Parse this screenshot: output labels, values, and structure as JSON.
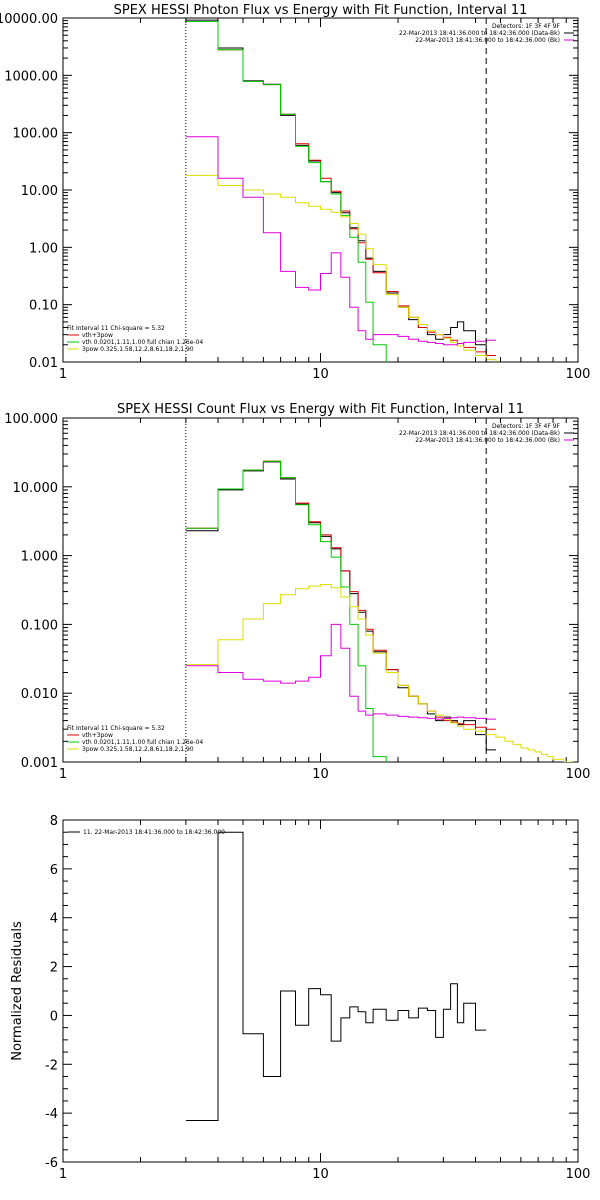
{
  "chart_data": [
    {
      "type": "line",
      "title": "SPEX HESSI Photon Flux vs Energy with Fit Function, Interval 11",
      "xscale": "log",
      "yscale": "log",
      "xlim": [
        1,
        100
      ],
      "ylim": [
        0.01,
        10000
      ],
      "xticks": [
        {
          "v": 1,
          "label": "1"
        },
        {
          "v": 10,
          "label": "10"
        },
        {
          "v": 100,
          "label": "100"
        }
      ],
      "yticks": [
        {
          "v": 10000,
          "label": "10000.00"
        },
        {
          "v": 1000,
          "label": "1000.00"
        },
        {
          "v": 100,
          "label": "100.00"
        },
        {
          "v": 10,
          "label": "10.00"
        },
        {
          "v": 1,
          "label": "1.00"
        },
        {
          "v": 0.1,
          "label": "0.10"
        },
        {
          "v": 0.01,
          "label": "0.01"
        }
      ],
      "vlines": [
        {
          "x": 3,
          "style": "dotted"
        },
        {
          "x": 44,
          "style": "dashed"
        }
      ],
      "legend_left": [
        {
          "text": "Fit Interval 11   Chi-square = 5.32",
          "color": "#000000"
        },
        {
          "text": "vth+3pow",
          "color": "#dd0000"
        },
        {
          "text": "vth 0.0201,1.11,1.00  full chian 1.26e-04",
          "color": "#00cc00"
        },
        {
          "text": "3pow 0.325,1.58,12.2,8.61,18.2,1.90",
          "color": "#dddd00"
        }
      ],
      "legend_right": [
        {
          "text": "Detectors: 1F 3F 4F 9F",
          "color": null
        },
        {
          "text": "22-Mar-2013 18:41:36.000 to 18:42:36.000 (Data-Bk)",
          "color": "#000000"
        },
        {
          "text": "22-Mar-2013 18:41:36.000 to 18:42:36.000 (Bk)",
          "color": "#dd00dd"
        }
      ],
      "edges": [
        3,
        4,
        5,
        6,
        7,
        8,
        9,
        10,
        11,
        12,
        13,
        14,
        15,
        16,
        18,
        20,
        22,
        24,
        26,
        28,
        30,
        32,
        34,
        36,
        40,
        44,
        48,
        52
      ],
      "series": [
        {
          "color": "#000000",
          "values": [
            9200,
            3000,
            800,
            700,
            200,
            60,
            32,
            14,
            9,
            4,
            2.2,
            1.3,
            0.65,
            0.38,
            0.16,
            0.09,
            0.055,
            0.04,
            0.03,
            0.025,
            0.03,
            0.04,
            0.05,
            0.035,
            0.02,
            0.01,
            null
          ]
        },
        {
          "color": "#dd0000",
          "values": [
            8700,
            2800,
            780,
            690,
            210,
            64,
            33,
            16,
            9.5,
            4.3,
            2.1,
            1.2,
            0.62,
            0.36,
            0.17,
            0.095,
            0.06,
            0.04,
            0.033,
            0.03,
            0.027,
            0.024,
            0.021,
            0.018,
            0.015,
            0.013,
            null
          ]
        },
        {
          "color": "#00cc00",
          "values": [
            8700,
            2800,
            780,
            690,
            210,
            58,
            30,
            14,
            8.5,
            3.6,
            1.5,
            0.55,
            0.11,
            0.02,
            0.006,
            null,
            null,
            null,
            null,
            null,
            null,
            null,
            null,
            null,
            null,
            null,
            null
          ]
        },
        {
          "color": "#dddd00",
          "values": [
            18,
            12,
            10,
            8.5,
            7.5,
            6,
            5.2,
            4.6,
            4.1,
            3.4,
            2.6,
            1.7,
            0.95,
            0.5,
            0.15,
            0.09,
            0.06,
            0.045,
            0.035,
            0.03,
            0.026,
            0.022,
            0.019,
            0.016,
            0.013,
            0.011,
            0.009
          ]
        },
        {
          "color": "#dd00dd",
          "values": [
            85,
            16,
            7.5,
            1.8,
            0.38,
            0.2,
            0.18,
            0.35,
            0.8,
            0.3,
            0.09,
            0.035,
            0.025,
            0.03,
            0.03,
            0.028,
            0.025,
            0.023,
            0.022,
            0.021,
            0.02,
            0.02,
            0.021,
            0.022,
            0.023,
            0.024,
            null
          ]
        }
      ]
    },
    {
      "type": "line",
      "title": "SPEX HESSI Count Flux vs Energy with Fit Function, Interval 11",
      "xscale": "log",
      "yscale": "log",
      "xlim": [
        1,
        100
      ],
      "ylim": [
        0.001,
        100
      ],
      "xticks": [
        {
          "v": 1,
          "label": "1"
        },
        {
          "v": 10,
          "label": "10"
        },
        {
          "v": 100,
          "label": "100"
        }
      ],
      "yticks": [
        {
          "v": 100,
          "label": "100.000"
        },
        {
          "v": 10,
          "label": "10.000"
        },
        {
          "v": 1,
          "label": "1.000"
        },
        {
          "v": 0.1,
          "label": "0.100"
        },
        {
          "v": 0.01,
          "label": "0.010"
        },
        {
          "v": 0.001,
          "label": "0.001"
        }
      ],
      "vlines": [
        {
          "x": 3,
          "style": "dotted"
        },
        {
          "x": 44,
          "style": "dashed"
        }
      ],
      "legend_left": [
        {
          "text": "Fit Interval 11   Chi-square = 5.32",
          "color": "#000000"
        },
        {
          "text": "vth+3pow",
          "color": "#dd0000"
        },
        {
          "text": "vth 0.0201,1.11,1.00  full chian 1.26e-04",
          "color": "#00cc00"
        },
        {
          "text": "3pow 0.325,1.58,12.2,8.61,18.2,1.90",
          "color": "#dddd00"
        }
      ],
      "legend_right": [
        {
          "text": "Detectors: 1F 3F 4F 9F",
          "color": null
        },
        {
          "text": "22-Mar-2013 18:41:36.000 to 18:42:36.000 (Data-Bk)",
          "color": "#000000"
        },
        {
          "text": "22-Mar-2013 18:41:36.000 to 18:42:36.000 (Bk)",
          "color": "#dd00dd"
        }
      ],
      "edges": [
        3,
        4,
        5,
        6,
        7,
        8,
        9,
        10,
        11,
        12,
        13,
        14,
        15,
        16,
        18,
        20,
        22,
        24,
        26,
        28,
        30,
        32,
        34,
        36,
        40,
        44,
        48,
        52,
        56,
        60,
        64,
        68,
        72,
        76,
        80,
        84,
        88,
        92,
        96
      ],
      "series": [
        {
          "color": "#000000",
          "values": [
            2.3,
            9,
            17,
            23,
            13,
            5.6,
            3,
            1.9,
            1.25,
            0.6,
            0.28,
            0.15,
            0.08,
            0.04,
            0.022,
            0.012,
            0.009,
            0.007,
            0.005,
            0.004,
            0.0045,
            0.004,
            0.0035,
            0.004,
            0.0025,
            0.0015,
            null,
            null,
            null,
            null,
            null,
            null,
            null,
            null,
            null,
            null,
            null,
            null
          ]
        },
        {
          "color": "#dd0000",
          "values": [
            2.5,
            9.3,
            17.5,
            23.5,
            13.5,
            5.8,
            3.1,
            2,
            1.3,
            0.6,
            0.3,
            0.16,
            0.085,
            0.042,
            0.022,
            0.013,
            0.009,
            0.007,
            0.0055,
            0.0045,
            0.004,
            0.0038,
            0.0036,
            0.0035,
            0.0032,
            0.003,
            null,
            null,
            null,
            null,
            null,
            null,
            null,
            null,
            null,
            null,
            null,
            null
          ]
        },
        {
          "color": "#00cc00",
          "values": [
            2.5,
            9.3,
            17.5,
            23.5,
            13.5,
            5.5,
            2.8,
            1.6,
            0.95,
            0.35,
            0.1,
            0.025,
            0.006,
            0.0012,
            0.0003,
            null,
            null,
            null,
            null,
            null,
            null,
            null,
            null,
            null,
            null,
            null,
            null,
            null,
            null,
            null,
            null,
            null,
            null,
            null,
            null,
            null,
            null,
            null
          ]
        },
        {
          "color": "#dddd00",
          "values": [
            0.026,
            0.06,
            0.12,
            0.2,
            0.27,
            0.33,
            0.36,
            0.38,
            0.34,
            0.25,
            0.18,
            0.12,
            0.07,
            0.038,
            0.02,
            0.013,
            0.009,
            0.007,
            0.0055,
            0.0048,
            0.0042,
            0.0037,
            0.0033,
            0.003,
            0.0028,
            0.0025,
            0.0023,
            0.002,
            0.0018,
            0.0016,
            0.0015,
            0.0014,
            0.0013,
            0.0012,
            0.0011,
            0.0011,
            0.001,
            0.001
          ]
        },
        {
          "color": "#dd00dd",
          "values": [
            0.025,
            0.02,
            0.016,
            0.015,
            0.014,
            0.015,
            0.017,
            0.035,
            0.1,
            0.045,
            0.009,
            0.0055,
            0.0048,
            0.005,
            0.0048,
            0.0046,
            0.0045,
            0.0044,
            0.0043,
            0.0042,
            0.0043,
            0.0044,
            0.0045,
            0.0044,
            0.0043,
            0.0042,
            null,
            null,
            null,
            null,
            null,
            null,
            null,
            null,
            null,
            null,
            null,
            null
          ]
        }
      ]
    },
    {
      "type": "line",
      "title": "",
      "ylabel": "Normalized Residuals",
      "xscale": "log",
      "yscale": "linear",
      "xlim": [
        1,
        100
      ],
      "ylim": [
        -6,
        8
      ],
      "xticks": [
        {
          "v": 1,
          "label": "1"
        },
        {
          "v": 10,
          "label": "10"
        },
        {
          "v": 100,
          "label": "100"
        }
      ],
      "yticks": [
        {
          "v": 8,
          "label": "8"
        },
        {
          "v": 6,
          "label": "6"
        },
        {
          "v": 4,
          "label": "4"
        },
        {
          "v": 2,
          "label": "2"
        },
        {
          "v": 0,
          "label": "0"
        },
        {
          "v": -2,
          "label": "-2"
        },
        {
          "v": -4,
          "label": "-4"
        },
        {
          "v": -6,
          "label": "-6"
        }
      ],
      "vlines": [],
      "legend_left": [
        {
          "text": "11. 22-Mar-2013 18:41:36.000 to 18:42:36.000",
          "color": "#000000"
        }
      ],
      "legend_right": [],
      "edges": [
        3,
        4,
        5,
        6,
        7,
        8,
        9,
        10,
        11,
        12,
        13,
        14,
        15,
        16,
        18,
        20,
        22,
        24,
        26,
        28,
        30,
        32,
        34,
        36,
        40,
        44
      ],
      "series": [
        {
          "color": "#000000",
          "values": [
            -4.3,
            7.5,
            -0.75,
            -2.5,
            1.0,
            -0.4,
            1.1,
            0.85,
            -1.05,
            -0.1,
            0.35,
            0.15,
            -0.3,
            0.25,
            -0.2,
            0.2,
            -0.1,
            0.3,
            0.2,
            -0.9,
            0.25,
            1.3,
            -0.3,
            0.5,
            -0.6
          ]
        }
      ]
    }
  ]
}
